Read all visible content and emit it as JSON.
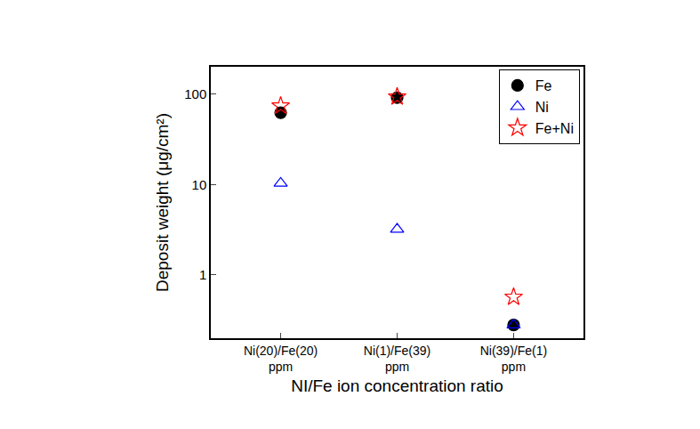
{
  "chart_data": {
    "type": "scatter",
    "x_label": "NI/Fe ion concentration ratio",
    "y_label": "Deposit weight (μg/cm²)",
    "categories": [
      "Ni(20)/Fe(20)\nppm",
      "Ni(1)/Fe(39)\nppm",
      "Ni(39)/Fe(1)\nppm"
    ],
    "series": [
      {
        "name": "Fe",
        "color": "#000000",
        "marker": "circle",
        "values": [
          62,
          91,
          0.28
        ]
      },
      {
        "name": "Ni",
        "color": "#0000ff",
        "marker": "triangle-up-open",
        "values": [
          10.3,
          3.2,
          0.28
        ]
      },
      {
        "name": "Fe+Ni",
        "color": "#ff0000",
        "marker": "star-open",
        "values": [
          74,
          93,
          0.57
        ]
      }
    ],
    "ylim": [
      0.2,
      200
    ],
    "yticks": [
      1,
      10,
      100
    ],
    "log": "y",
    "grid": false,
    "legend": "top-right"
  }
}
